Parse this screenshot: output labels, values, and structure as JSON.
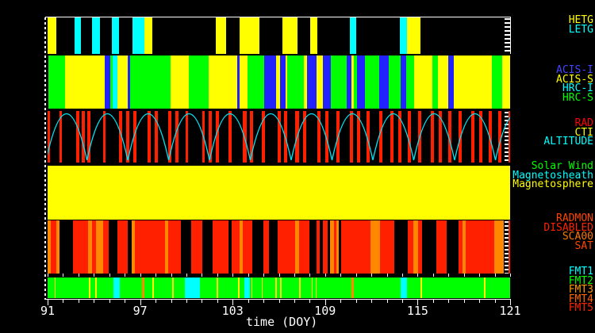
{
  "chart_data": {
    "type": "timeline-bands",
    "xlabel": "time (DOY)",
    "x_range": [
      91,
      121
    ],
    "x_major_ticks": [
      91,
      97,
      103,
      109,
      115,
      121
    ],
    "x_minor_tick_interval": 1,
    "palette": {
      "Y": "#ffff00",
      "C": "#00ffff",
      "G": "#00ff00",
      "B": "#2222ff",
      "R": "#ff2000",
      "O": "#ff8800",
      "axis": "#ffffff",
      "background": "#000000",
      "altitude_curve": "#00e8f8"
    },
    "bands": [
      {
        "name": "gratings",
        "labels": [
          {
            "text": "HETG",
            "color": "#ffff00"
          },
          {
            "text": "LETG",
            "color": "#00ffff"
          }
        ],
        "base_color": "#000000",
        "segments": [
          [
            91.0,
            91.57,
            "Y"
          ],
          [
            92.75,
            93.16,
            "C"
          ],
          [
            93.88,
            94.4,
            "C"
          ],
          [
            95.17,
            95.63,
            "C"
          ],
          [
            96.51,
            97.28,
            "C"
          ],
          [
            97.28,
            97.79,
            "Y"
          ],
          [
            101.91,
            102.58,
            "Y"
          ],
          [
            103.45,
            104.74,
            "Y"
          ],
          [
            106.23,
            107.21,
            "Y"
          ],
          [
            108.03,
            108.5,
            "Y"
          ],
          [
            110.61,
            111.02,
            "C"
          ],
          [
            113.85,
            114.31,
            "C"
          ],
          [
            114.31,
            115.19,
            "Y"
          ]
        ]
      },
      {
        "name": "instruments",
        "labels": [
          {
            "text": "ACIS-I",
            "color": "#4444ff"
          },
          {
            "text": "ACIS-S",
            "color": "#ffff00"
          },
          {
            "text": "HRC-I",
            "color": "#00ffff"
          },
          {
            "text": "HRC-S",
            "color": "#00ff00"
          }
        ],
        "base_color": "#000000",
        "segments": [
          [
            91.05,
            92.13,
            "G"
          ],
          [
            92.13,
            94.71,
            "Y"
          ],
          [
            94.71,
            95.07,
            "B"
          ],
          [
            95.07,
            95.22,
            "G"
          ],
          [
            95.22,
            95.53,
            "C"
          ],
          [
            95.53,
            96.2,
            "Y"
          ],
          [
            96.2,
            96.35,
            "B"
          ],
          [
            96.35,
            98.98,
            "G"
          ],
          [
            98.98,
            100.16,
            "Y"
          ],
          [
            100.16,
            101.45,
            "G"
          ],
          [
            101.45,
            103.3,
            "Y"
          ],
          [
            103.3,
            103.45,
            "B"
          ],
          [
            103.45,
            103.97,
            "Y"
          ],
          [
            103.97,
            105.05,
            "G"
          ],
          [
            105.05,
            105.82,
            "B"
          ],
          [
            105.82,
            106.08,
            "Y"
          ],
          [
            106.08,
            106.44,
            "B"
          ],
          [
            106.44,
            106.54,
            "Y"
          ],
          [
            106.54,
            107.62,
            "G"
          ],
          [
            107.62,
            107.83,
            "Y"
          ],
          [
            107.83,
            108.44,
            "B"
          ],
          [
            108.44,
            108.86,
            "Y"
          ],
          [
            108.86,
            109.37,
            "B"
          ],
          [
            109.37,
            110.4,
            "G"
          ],
          [
            110.4,
            110.71,
            "B"
          ],
          [
            110.71,
            110.86,
            "Y"
          ],
          [
            110.86,
            111.07,
            "G"
          ],
          [
            111.07,
            111.58,
            "B"
          ],
          [
            111.58,
            112.51,
            "G"
          ],
          [
            112.51,
            113.13,
            "B"
          ],
          [
            113.13,
            113.9,
            "G"
          ],
          [
            113.9,
            114.26,
            "B"
          ],
          [
            114.26,
            114.77,
            "G"
          ],
          [
            114.77,
            115.96,
            "Y"
          ],
          [
            115.96,
            116.32,
            "G"
          ],
          [
            116.32,
            116.99,
            "Y"
          ],
          [
            116.99,
            117.35,
            "B"
          ],
          [
            117.35,
            119.82,
            "Y"
          ],
          [
            119.82,
            120.49,
            "G"
          ],
          [
            120.49,
            121.0,
            "Y"
          ]
        ]
      },
      {
        "name": "radiation-altitude",
        "labels": [
          {
            "text": "RAD",
            "color": "#ff0000"
          },
          {
            "text": "CTI",
            "color": "#ffff00"
          },
          {
            "text": "ALTITUDE",
            "color": "#00ffff"
          }
        ],
        "base_color": "#000000",
        "segments": [
          [
            91.0,
            91.15,
            "R"
          ],
          [
            91.77,
            91.93,
            "R"
          ],
          [
            92.85,
            93.06,
            "R"
          ],
          [
            93.21,
            93.42,
            "R"
          ],
          [
            93.57,
            93.78,
            "R"
          ],
          [
            94.6,
            94.76,
            "R"
          ],
          [
            95.63,
            95.84,
            "R"
          ],
          [
            96.09,
            96.3,
            "R"
          ],
          [
            96.56,
            96.76,
            "R"
          ],
          [
            97.48,
            97.69,
            "R"
          ],
          [
            97.95,
            98.15,
            "R"
          ],
          [
            98.82,
            99.03,
            "R"
          ],
          [
            99.29,
            99.49,
            "R"
          ],
          [
            99.95,
            100.11,
            "R"
          ],
          [
            101.03,
            101.19,
            "R"
          ],
          [
            101.45,
            101.65,
            "R"
          ],
          [
            101.91,
            102.12,
            "R"
          ],
          [
            102.73,
            102.94,
            "R"
          ],
          [
            103.66,
            103.92,
            "R"
          ],
          [
            104.12,
            104.33,
            "R"
          ],
          [
            104.89,
            105.1,
            "R"
          ],
          [
            105.92,
            106.13,
            "R"
          ],
          [
            106.33,
            106.54,
            "R"
          ],
          [
            107.06,
            107.31,
            "R"
          ],
          [
            107.57,
            107.78,
            "R"
          ],
          [
            108.5,
            108.7,
            "R"
          ],
          [
            109.01,
            109.22,
            "R"
          ],
          [
            109.73,
            109.94,
            "R"
          ],
          [
            110.61,
            110.81,
            "R"
          ],
          [
            111.07,
            111.27,
            "R"
          ],
          [
            111.69,
            111.89,
            "R"
          ],
          [
            112.51,
            112.72,
            "R"
          ],
          [
            113.23,
            113.44,
            "R"
          ],
          [
            113.75,
            113.95,
            "R"
          ],
          [
            114.36,
            114.57,
            "R"
          ],
          [
            115.03,
            115.24,
            "R"
          ],
          [
            115.86,
            116.06,
            "R"
          ],
          [
            116.37,
            116.58,
            "R"
          ],
          [
            116.99,
            117.2,
            "R"
          ],
          [
            117.66,
            117.86,
            "R"
          ],
          [
            118.48,
            118.69,
            "R"
          ],
          [
            119.0,
            119.2,
            "R"
          ],
          [
            119.61,
            119.82,
            "R"
          ],
          [
            120.23,
            120.43,
            "R"
          ],
          [
            120.9,
            121.0,
            "R"
          ]
        ],
        "altitude_curve": {
          "first_perigee_doy": 90.9,
          "period_days": 2.65
        }
      },
      {
        "name": "solar-wind-region",
        "labels": [
          {
            "text": "Solar Wind",
            "color": "#00ff00"
          },
          {
            "text": "Magnetosheath",
            "color": "#00ffff"
          },
          {
            "text": "Magnetosphere",
            "color": "#ffff00"
          }
        ],
        "base_color": "#000000",
        "segments": [
          [
            91.0,
            121.0,
            "Y"
          ]
        ]
      },
      {
        "name": "radmon",
        "labels": [
          {
            "text": "RADMON",
            "color": "#ff4400"
          },
          {
            "text": "DISABLED",
            "color": "#ff2200"
          },
          {
            "text": "SCA00",
            "color": "#ff7700"
          },
          {
            "text": "SAT",
            "color": "#ff4400"
          }
        ],
        "base_color": "#000000",
        "segments": [
          [
            91.0,
            91.21,
            "O"
          ],
          [
            91.21,
            91.57,
            "R"
          ],
          [
            91.57,
            91.77,
            "O"
          ],
          [
            92.65,
            93.62,
            "R"
          ],
          [
            93.62,
            93.88,
            "O"
          ],
          [
            93.88,
            94.14,
            "R"
          ],
          [
            94.14,
            94.6,
            "O"
          ],
          [
            94.6,
            94.96,
            "R"
          ],
          [
            95.53,
            96.2,
            "R"
          ],
          [
            96.45,
            96.66,
            "O"
          ],
          [
            96.66,
            98.62,
            "R"
          ],
          [
            98.62,
            98.82,
            "O"
          ],
          [
            98.82,
            99.64,
            "R"
          ],
          [
            100.31,
            101.03,
            "R"
          ],
          [
            101.7,
            102.73,
            "R"
          ],
          [
            102.94,
            103.45,
            "R"
          ],
          [
            103.45,
            103.66,
            "O"
          ],
          [
            103.66,
            104.28,
            "R"
          ],
          [
            105.0,
            105.36,
            "R"
          ],
          [
            105.92,
            107.06,
            "R"
          ],
          [
            107.06,
            107.31,
            "O"
          ],
          [
            107.31,
            107.98,
            "R"
          ],
          [
            108.44,
            108.65,
            "R"
          ],
          [
            108.86,
            109.17,
            "R"
          ],
          [
            109.32,
            109.58,
            "O"
          ],
          [
            109.58,
            109.73,
            "R"
          ],
          [
            109.73,
            109.89,
            "O"
          ],
          [
            110.04,
            111.94,
            "R"
          ],
          [
            111.94,
            112.56,
            "O"
          ],
          [
            112.56,
            113.49,
            "R"
          ],
          [
            114.36,
            114.72,
            "R"
          ],
          [
            114.72,
            115.03,
            "O"
          ],
          [
            115.03,
            115.29,
            "R"
          ],
          [
            116.21,
            116.88,
            "R"
          ],
          [
            117.66,
            117.91,
            "R"
          ],
          [
            117.91,
            118.12,
            "O"
          ],
          [
            118.12,
            119.97,
            "R"
          ],
          [
            119.97,
            120.59,
            "O"
          ],
          [
            120.9,
            121.0,
            "R"
          ]
        ]
      },
      {
        "name": "telemetry-format",
        "labels": [
          {
            "text": "FMT1",
            "color": "#00ffff"
          },
          {
            "text": "FMT2",
            "color": "#00ff00"
          },
          {
            "text": "FMT3",
            "color": "#ff9900"
          },
          {
            "text": "FMT4",
            "color": "#ff6600"
          },
          {
            "text": "FMT5",
            "color": "#ff2200"
          }
        ],
        "base_color": "#00ff00",
        "segments": [
          [
            95.27,
            95.68,
            "C"
          ],
          [
            99.9,
            100.88,
            "C"
          ],
          [
            103.76,
            104.12,
            "C"
          ],
          [
            113.9,
            114.31,
            "C"
          ],
          [
            97.12,
            97.28,
            "O"
          ],
          [
            110.71,
            110.86,
            "O"
          ],
          [
            91.46,
            91.54,
            "Y"
          ],
          [
            93.68,
            93.76,
            "Y"
          ],
          [
            94.09,
            94.17,
            "Y"
          ],
          [
            97.79,
            97.87,
            "Y"
          ],
          [
            99.08,
            99.16,
            "Y"
          ],
          [
            101.96,
            102.04,
            "Y"
          ],
          [
            103.35,
            103.43,
            "Y"
          ],
          [
            104.22,
            104.3,
            "Y"
          ],
          [
            104.89,
            104.97,
            "Y"
          ],
          [
            105.77,
            105.85,
            "Y"
          ],
          [
            106.08,
            106.16,
            "Y"
          ],
          [
            107.31,
            107.39,
            "Y"
          ],
          [
            108.13,
            108.21,
            "Y"
          ],
          [
            108.39,
            108.47,
            "Y"
          ],
          [
            115.19,
            115.27,
            "Y"
          ],
          [
            119.31,
            119.39,
            "Y"
          ]
        ]
      }
    ]
  }
}
